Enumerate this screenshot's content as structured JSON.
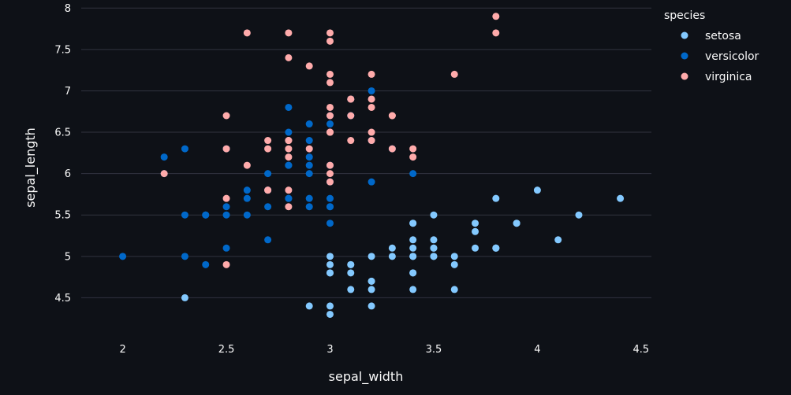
{
  "chart_data": {
    "type": "scatter",
    "xlabel": "sepal_width",
    "ylabel": "sepal_length",
    "xlim": [
      1.8,
      4.55
    ],
    "ylim": [
      4.0,
      8.05
    ],
    "xticks": [
      2,
      2.5,
      3,
      3.5,
      4,
      4.5
    ],
    "yticks": [
      4.5,
      5,
      5.5,
      6,
      6.5,
      7,
      7.5,
      8
    ],
    "grid": "horizontal",
    "legend": {
      "title": "species",
      "placement": "top-right"
    },
    "series": [
      {
        "name": "setosa",
        "color": "#83c9ff",
        "points": [
          [
            3.5,
            5.1
          ],
          [
            3.0,
            4.9
          ],
          [
            3.2,
            4.7
          ],
          [
            3.1,
            4.6
          ],
          [
            3.6,
            5.0
          ],
          [
            3.9,
            5.4
          ],
          [
            3.4,
            4.6
          ],
          [
            3.4,
            5.0
          ],
          [
            2.9,
            4.4
          ],
          [
            3.1,
            4.9
          ],
          [
            3.7,
            5.4
          ],
          [
            3.4,
            4.8
          ],
          [
            3.0,
            4.8
          ],
          [
            3.0,
            4.3
          ],
          [
            4.0,
            5.8
          ],
          [
            4.4,
            5.7
          ],
          [
            3.9,
            5.4
          ],
          [
            3.5,
            5.1
          ],
          [
            3.8,
            5.7
          ],
          [
            3.8,
            5.1
          ],
          [
            3.4,
            5.4
          ],
          [
            3.7,
            5.1
          ],
          [
            3.6,
            4.6
          ],
          [
            3.3,
            5.1
          ],
          [
            3.4,
            4.8
          ],
          [
            3.0,
            5.0
          ],
          [
            3.4,
            5.0
          ],
          [
            3.5,
            5.2
          ],
          [
            3.4,
            5.2
          ],
          [
            3.2,
            4.7
          ],
          [
            3.1,
            4.8
          ],
          [
            3.4,
            5.4
          ],
          [
            4.1,
            5.2
          ],
          [
            4.2,
            5.5
          ],
          [
            3.1,
            4.9
          ],
          [
            3.2,
            5.0
          ],
          [
            3.5,
            5.5
          ],
          [
            3.6,
            4.9
          ],
          [
            3.0,
            4.4
          ],
          [
            3.4,
            5.1
          ],
          [
            3.5,
            5.0
          ],
          [
            2.3,
            4.5
          ],
          [
            3.2,
            4.4
          ],
          [
            3.5,
            5.0
          ],
          [
            3.8,
            5.1
          ],
          [
            3.0,
            4.8
          ],
          [
            3.8,
            5.1
          ],
          [
            3.2,
            4.6
          ],
          [
            3.7,
            5.3
          ],
          [
            3.3,
            5.0
          ]
        ]
      },
      {
        "name": "versicolor",
        "color": "#0068c9",
        "points": [
          [
            3.2,
            7.0
          ],
          [
            3.2,
            6.4
          ],
          [
            3.1,
            6.9
          ],
          [
            2.3,
            5.5
          ],
          [
            2.8,
            6.5
          ],
          [
            2.8,
            5.7
          ],
          [
            3.3,
            6.3
          ],
          [
            2.4,
            4.9
          ],
          [
            2.9,
            6.6
          ],
          [
            2.7,
            5.2
          ],
          [
            2.0,
            5.0
          ],
          [
            3.0,
            5.9
          ],
          [
            2.2,
            6.0
          ],
          [
            2.9,
            6.1
          ],
          [
            2.9,
            5.6
          ],
          [
            3.1,
            6.7
          ],
          [
            3.0,
            5.6
          ],
          [
            2.7,
            5.8
          ],
          [
            2.2,
            6.2
          ],
          [
            2.5,
            5.6
          ],
          [
            3.2,
            5.9
          ],
          [
            2.8,
            6.1
          ],
          [
            2.5,
            6.3
          ],
          [
            2.8,
            6.1
          ],
          [
            2.9,
            6.4
          ],
          [
            3.0,
            6.6
          ],
          [
            2.8,
            6.8
          ],
          [
            3.0,
            6.7
          ],
          [
            2.9,
            6.0
          ],
          [
            2.6,
            5.7
          ],
          [
            2.4,
            5.5
          ],
          [
            2.4,
            5.5
          ],
          [
            2.7,
            5.8
          ],
          [
            2.7,
            6.0
          ],
          [
            3.0,
            5.4
          ],
          [
            3.4,
            6.0
          ],
          [
            3.1,
            6.7
          ],
          [
            2.3,
            6.3
          ],
          [
            3.0,
            5.6
          ],
          [
            2.5,
            5.5
          ],
          [
            2.6,
            5.5
          ],
          [
            3.0,
            6.1
          ],
          [
            2.6,
            5.8
          ],
          [
            2.3,
            5.0
          ],
          [
            2.7,
            5.6
          ],
          [
            3.0,
            5.7
          ],
          [
            2.9,
            5.7
          ],
          [
            2.9,
            6.2
          ],
          [
            2.5,
            5.1
          ],
          [
            2.8,
            5.7
          ]
        ]
      },
      {
        "name": "virginica",
        "color": "#ffabab",
        "points": [
          [
            3.3,
            6.3
          ],
          [
            2.7,
            5.8
          ],
          [
            3.0,
            7.1
          ],
          [
            2.9,
            6.3
          ],
          [
            3.0,
            6.5
          ],
          [
            3.0,
            7.6
          ],
          [
            2.5,
            4.9
          ],
          [
            2.9,
            7.3
          ],
          [
            2.5,
            6.7
          ],
          [
            3.6,
            7.2
          ],
          [
            3.2,
            6.5
          ],
          [
            2.7,
            6.4
          ],
          [
            3.0,
            6.8
          ],
          [
            2.5,
            5.7
          ],
          [
            2.8,
            5.8
          ],
          [
            3.2,
            6.4
          ],
          [
            3.0,
            6.5
          ],
          [
            3.8,
            7.7
          ],
          [
            2.6,
            7.7
          ],
          [
            2.2,
            6.0
          ],
          [
            3.2,
            6.9
          ],
          [
            2.8,
            5.6
          ],
          [
            2.8,
            7.7
          ],
          [
            2.7,
            6.3
          ],
          [
            3.3,
            6.7
          ],
          [
            3.2,
            7.2
          ],
          [
            2.8,
            6.2
          ],
          [
            3.0,
            6.1
          ],
          [
            2.8,
            6.4
          ],
          [
            3.0,
            7.2
          ],
          [
            2.8,
            7.4
          ],
          [
            3.8,
            7.9
          ],
          [
            2.8,
            6.4
          ],
          [
            2.8,
            6.3
          ],
          [
            2.6,
            6.1
          ],
          [
            3.0,
            7.7
          ],
          [
            3.4,
            6.3
          ],
          [
            3.1,
            6.4
          ],
          [
            3.0,
            6.0
          ],
          [
            3.1,
            6.9
          ],
          [
            3.1,
            6.7
          ],
          [
            3.1,
            6.9
          ],
          [
            2.7,
            5.8
          ],
          [
            3.2,
            6.8
          ],
          [
            3.3,
            6.7
          ],
          [
            3.0,
            6.7
          ],
          [
            2.5,
            6.3
          ],
          [
            3.0,
            6.5
          ],
          [
            3.4,
            6.2
          ],
          [
            3.0,
            5.9
          ]
        ]
      }
    ]
  }
}
